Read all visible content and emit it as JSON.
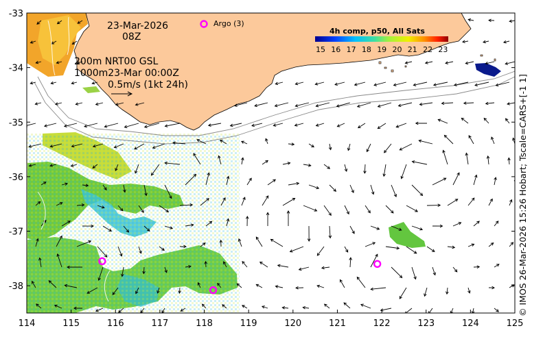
{
  "map": {
    "date": "23-Mar-2026",
    "hour": "08Z",
    "product_line1": "200m  NRT00 GSL",
    "product_line2": "1000m23-Mar 00:00Z",
    "scale_label": "0.5m/s (1kt 24h)",
    "argo_label": "Argo (3)",
    "colorbar_title": "4h comp, p50, All Sats",
    "colorbar_ticks": [
      "15",
      "16",
      "17",
      "18",
      "19",
      "20",
      "21",
      "22",
      "23"
    ],
    "credit": "© IMOS 26-Mar-2026 15:26 Hobart; Tscale=CARS+[-1 1]",
    "x_ticks": [
      "114",
      "115",
      "116",
      "117",
      "118",
      "119",
      "120",
      "121",
      "122",
      "123",
      "124",
      "125"
    ],
    "y_ticks": [
      "-33",
      "-34",
      "-35",
      "-36",
      "-37",
      "-38"
    ],
    "colors": {
      "land": "#fcc99b",
      "argo": "#ff00ff",
      "sst_warm": "#f0a020",
      "sst_mid": "#8fd638",
      "sst_cool": "#2fb8d8",
      "sst_cold": "#0a1a8c"
    },
    "argo_floats": [
      {
        "lon": 115.7,
        "lat": -37.55
      },
      {
        "lon": 118.2,
        "lat": -38.08
      },
      {
        "lon": 121.9,
        "lat": -37.6
      }
    ]
  }
}
